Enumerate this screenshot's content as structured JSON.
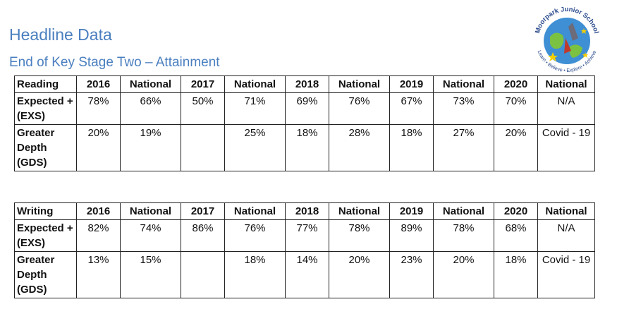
{
  "header": {
    "title": "Headline Data",
    "subtitle": "End of Key Stage Two – Attainment",
    "logo_text": "Moorpark Junior School",
    "logo_motto": "Learn • Believe • Explore • Achieve"
  },
  "reading": {
    "headers": [
      "Reading",
      "2016",
      "National",
      "2017",
      "National",
      "2018",
      "National",
      "2019",
      "National",
      "2020",
      "National"
    ],
    "rows": [
      {
        "label": "Expected + (EXS)",
        "values": [
          "78%",
          "66%",
          "50%",
          "71%",
          "69%",
          "76%",
          "67%",
          "73%",
          "70%",
          "N/A"
        ]
      },
      {
        "label": "Greater Depth (GDS)",
        "values": [
          "20%",
          "19%",
          "",
          "25%",
          "18%",
          "28%",
          "18%",
          "27%",
          "20%",
          "Covid - 19"
        ]
      }
    ]
  },
  "writing": {
    "headers": [
      "Writing",
      "2016",
      "National",
      "2017",
      "National",
      "2018",
      "National",
      "2019",
      "National",
      "2020",
      "National"
    ],
    "rows": [
      {
        "label": "Expected + (EXS)",
        "values": [
          "82%",
          "74%",
          "86%",
          "76%",
          "77%",
          "78%",
          "89%",
          "78%",
          "68%",
          "N/A"
        ]
      },
      {
        "label": "Greater Depth (GDS)",
        "values": [
          "13%",
          "15%",
          "",
          "18%",
          "14%",
          "20%",
          "23%",
          "20%",
          "18%",
          "Covid - 19"
        ]
      }
    ]
  },
  "colors": {
    "heading": "#4a7fbf",
    "logo_globe": "#3f8fd4",
    "logo_land": "#7cc242",
    "logo_text": "#2a4a8c"
  }
}
